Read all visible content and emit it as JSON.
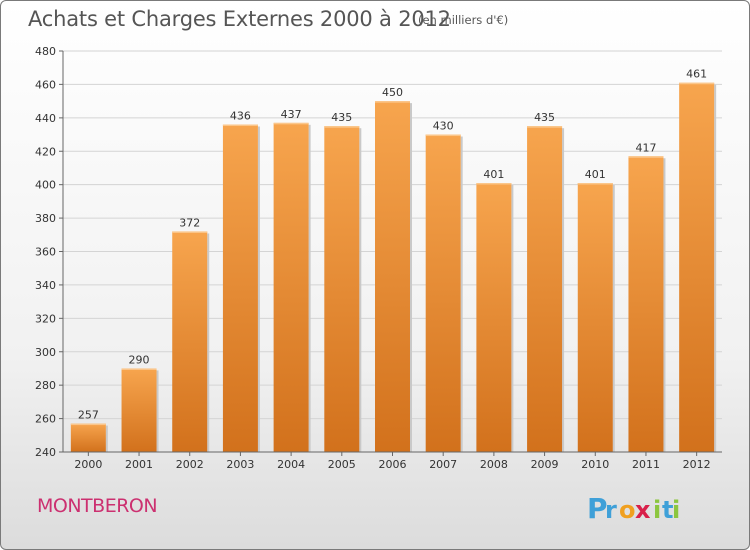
{
  "header": {
    "title": "Achats et Charges Externes 2000 à 2012",
    "subtitle": "(en milliers d'€)"
  },
  "footer": {
    "town": "MONTBERON",
    "logo_text": "Proxiti",
    "logo_letters": [
      "P",
      "r",
      "o",
      "x",
      "i",
      "t",
      "i"
    ],
    "logo_colors": [
      "#3fa0d8",
      "#3fa0d8",
      "#f0a020",
      "#d8204a",
      "#8cc63f",
      "#3fa0d8",
      "#8cc63f"
    ]
  },
  "colors": {
    "bar_light": "#f7a54e",
    "bar_dark": "#d2711c",
    "grid": "#d4d4d4",
    "axis": "#666666"
  },
  "chart_data": {
    "type": "bar",
    "title": "Achats et Charges Externes 2000 à 2012",
    "subtitle": "(en milliers d'€)",
    "categories": [
      "2000",
      "2001",
      "2002",
      "2003",
      "2004",
      "2005",
      "2006",
      "2007",
      "2008",
      "2009",
      "2010",
      "2011",
      "2012"
    ],
    "values": [
      257,
      290,
      372,
      436,
      437,
      435,
      450,
      430,
      401,
      435,
      401,
      417,
      461
    ],
    "ylim": [
      240,
      480
    ],
    "yticks": [
      240,
      260,
      280,
      300,
      320,
      340,
      360,
      380,
      400,
      420,
      440,
      460,
      480
    ],
    "grid": true,
    "data_labels": true
  }
}
